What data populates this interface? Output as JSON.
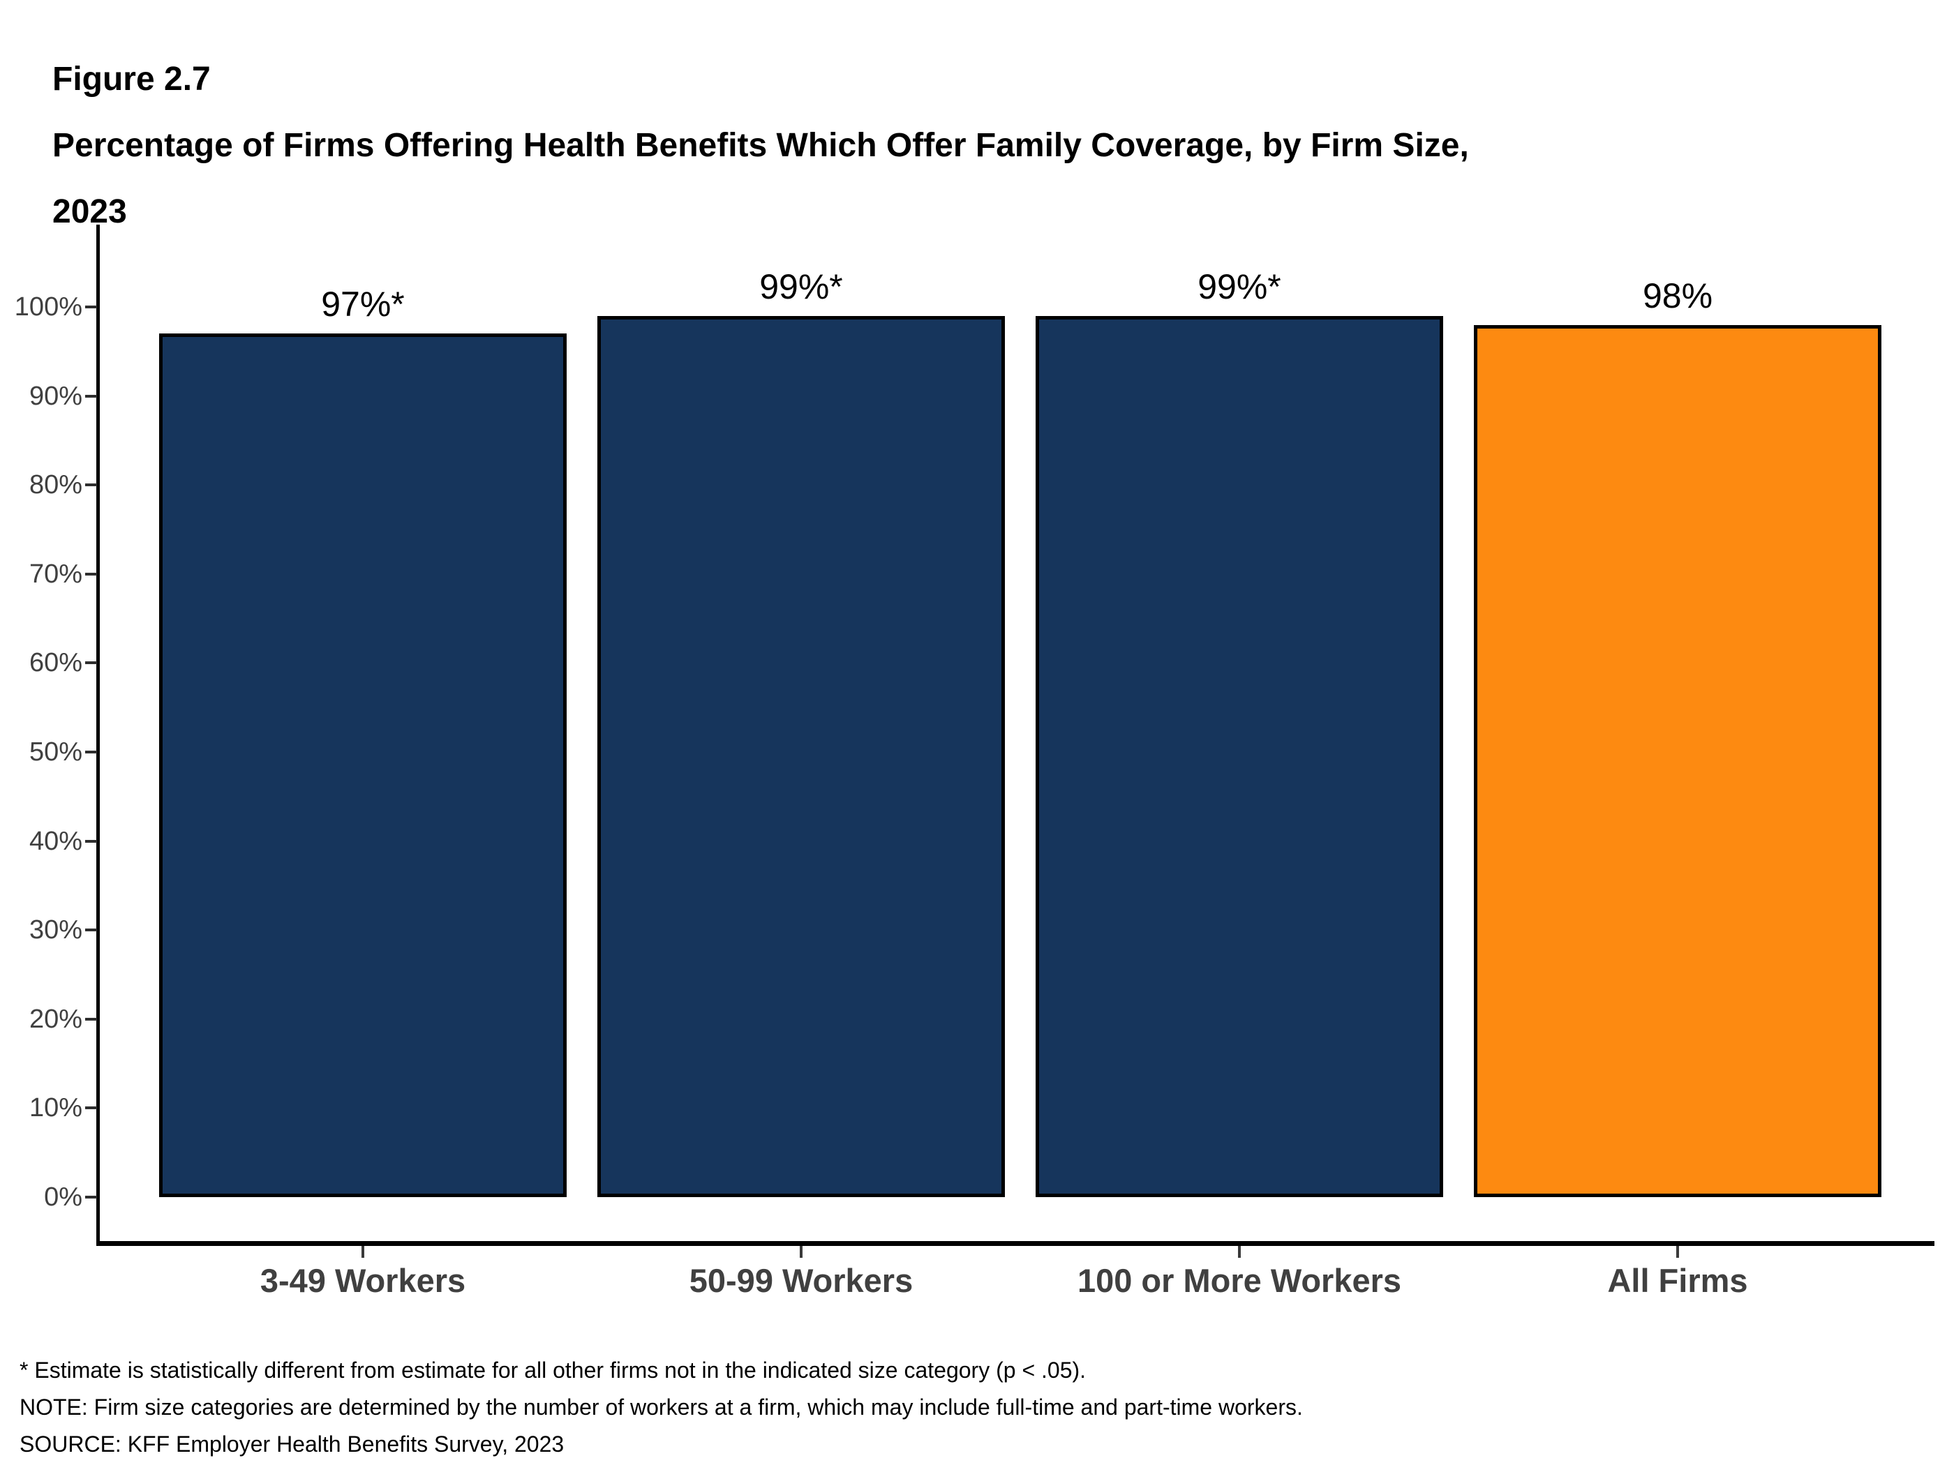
{
  "figure": {
    "label": "Figure 2.7",
    "title_line1": "Percentage of Firms Offering Health Benefits Which Offer Family Coverage, by Firm Size,",
    "title_line2": "2023"
  },
  "chart_data": {
    "type": "bar",
    "title": "Percentage of Firms Offering Health Benefits Which Offer Family Coverage, by Firm Size, 2023",
    "categories": [
      "3-49 Workers",
      "50-99 Workers",
      "100 or More Workers",
      "All Firms"
    ],
    "values": [
      97,
      99,
      99,
      98
    ],
    "value_labels": [
      "97%*",
      "99%*",
      "99%*",
      "98%"
    ],
    "bar_colors": [
      "#16355C",
      "#16355C",
      "#16355C",
      "#FD8A11"
    ],
    "xlabel": "",
    "ylabel": "",
    "ylim": [
      0,
      100
    ],
    "y_tick_step": 10,
    "y_ticks": [
      "0%",
      "10%",
      "20%",
      "30%",
      "40%",
      "50%",
      "60%",
      "70%",
      "80%",
      "90%",
      "100%"
    ],
    "grid": false,
    "legend": "none",
    "bar_outline_color": "#000000"
  },
  "colors": {
    "bar_navy": "#16355C",
    "bar_orange": "#FD8A11",
    "axis_line": "#000000",
    "axis_text": "#404040",
    "background": "#FFFFFF"
  },
  "footnotes": {
    "asterisk": "* Estimate is statistically different from estimate for all other firms not in the indicated size category (p < .05).",
    "note": "NOTE: Firm size categories are determined by the number of workers at a firm, which may include full-time and part-time workers.",
    "source": "SOURCE: KFF Employer Health Benefits Survey, 2023"
  }
}
